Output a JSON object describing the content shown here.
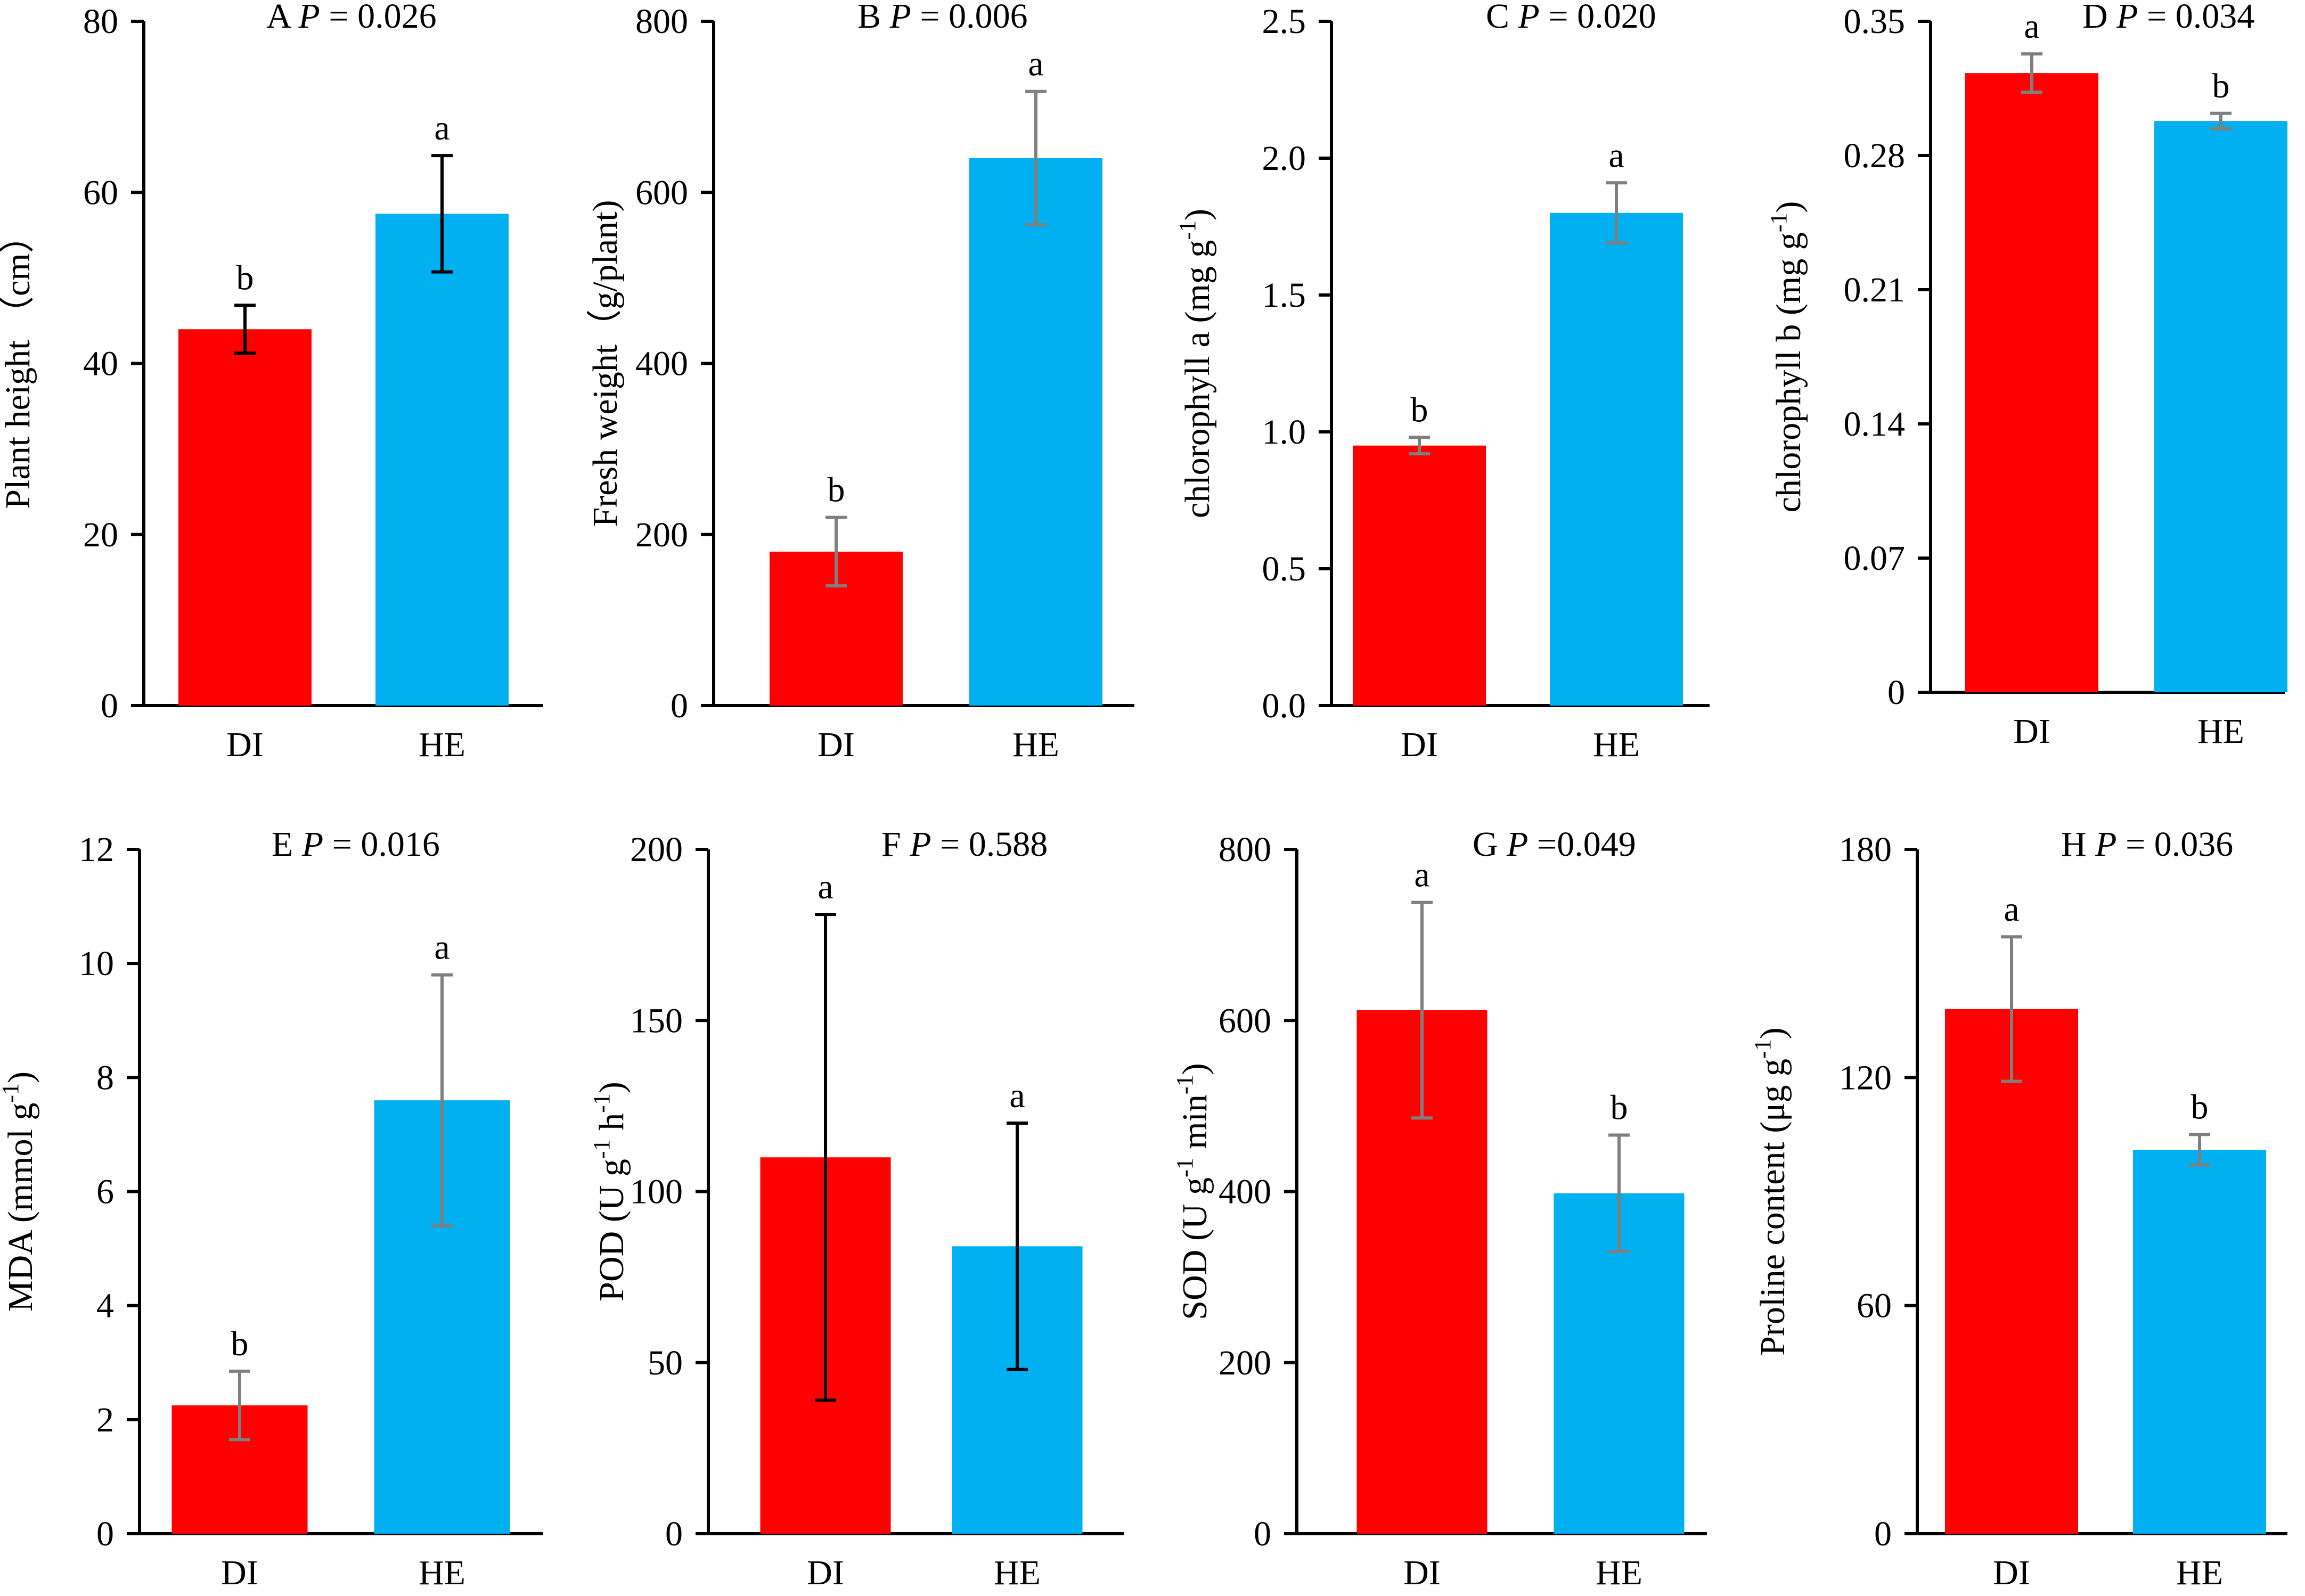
{
  "colors": {
    "DI": "#ff0000",
    "HE": "#00b0f0",
    "axis": "#000000",
    "error_dark": "#000000",
    "error_grey": "#7f7f7f"
  },
  "chart_data": [
    {
      "type": "bar",
      "panel": "A",
      "p_label": "P",
      "p_text": " = 0.026",
      "categories": [
        "DI",
        "HE"
      ],
      "values": [
        44.0,
        57.5
      ],
      "errors": [
        2.8,
        6.8
      ],
      "sig": [
        "b",
        "a"
      ],
      "ylabel": "Plant height （cm）",
      "ylim": [
        0,
        80
      ],
      "yticks": [
        "0",
        "20",
        "40",
        "60",
        "80"
      ],
      "error_color": "dark"
    },
    {
      "type": "bar",
      "panel": "B",
      "p_label": "P",
      "p_text": " = 0.006",
      "categories": [
        "DI",
        "HE"
      ],
      "values": [
        180,
        640
      ],
      "errors": [
        40,
        78
      ],
      "sig": [
        "b",
        "a"
      ],
      "ylabel": "Fresh weight（g/plant)",
      "ylim": [
        0,
        800
      ],
      "yticks": [
        "0",
        "200",
        "400",
        "600",
        "800"
      ],
      "error_color": "grey"
    },
    {
      "type": "bar",
      "panel": "C",
      "p_label": "P",
      "p_text": " = 0.020",
      "categories": [
        "DI",
        "HE"
      ],
      "values": [
        0.95,
        1.8
      ],
      "errors": [
        0.03,
        0.11
      ],
      "sig": [
        "b",
        "a"
      ],
      "ylabel": "chlorophyll a (mg g",
      "ylabel_sup": "-1",
      "ylabel_end": ")",
      "ylim": [
        0,
        2.5
      ],
      "yticks": [
        "0.0",
        "0.5",
        "1.0",
        "1.5",
        "2.0",
        "2.5"
      ],
      "error_color": "grey"
    },
    {
      "type": "bar",
      "panel": "D",
      "p_label": "P",
      "p_text": " = 0.034",
      "categories": [
        "DI",
        "HE"
      ],
      "values": [
        0.323,
        0.298
      ],
      "errors": [
        0.01,
        0.004
      ],
      "sig": [
        "a",
        "b"
      ],
      "ylabel": "chlorophyll b (mg g",
      "ylabel_sup": "-1",
      "ylabel_end": ")",
      "ylim": [
        0,
        0.35
      ],
      "yticks": [
        "0",
        "0.07",
        "0.14",
        "0.21",
        "0.28",
        "0.35"
      ],
      "error_color": "grey"
    },
    {
      "type": "bar",
      "panel": "E",
      "p_label": "P",
      "p_text": " =  0.016",
      "categories": [
        "DI",
        "HE"
      ],
      "values": [
        2.25,
        7.6
      ],
      "errors": [
        0.6,
        2.2
      ],
      "sig": [
        "b",
        "a"
      ],
      "ylabel": "MDA (mmol g",
      "ylabel_sup": "-1",
      "ylabel_end": ")",
      "ylim": [
        0,
        12
      ],
      "yticks": [
        "0",
        "2",
        "4",
        "6",
        "8",
        "10",
        "12"
      ],
      "error_color": "grey"
    },
    {
      "type": "bar",
      "panel": "F",
      "p_label": "P",
      "p_text": " = 0.588",
      "categories": [
        "DI",
        "HE"
      ],
      "values": [
        110,
        84
      ],
      "errors": [
        71,
        36
      ],
      "sig": [
        "a",
        "a"
      ],
      "ylabel": "POD (U  g",
      "ylabel_sup": "-1",
      "ylabel_mid": " h",
      "ylabel_sup2": "-1",
      "ylabel_end": ")",
      "ylim": [
        0,
        200
      ],
      "yticks": [
        "0",
        "50",
        "100",
        "150",
        "200"
      ],
      "error_color": "dark"
    },
    {
      "type": "bar",
      "panel": "G",
      "p_label": "P",
      "p_text": " =0.049",
      "categories": [
        "DI",
        "HE"
      ],
      "values": [
        612,
        398
      ],
      "errors": [
        126,
        68
      ],
      "sig": [
        "a",
        "b"
      ],
      "ylabel": "SOD (U g",
      "ylabel_sup": "-1",
      "ylabel_mid": " min",
      "ylabel_sup2": "-1",
      "ylabel_end": ")",
      "ylim": [
        0,
        800
      ],
      "yticks": [
        "0",
        "200",
        "400",
        "600",
        "800"
      ],
      "error_color": "grey"
    },
    {
      "type": "bar",
      "panel": "H",
      "p_label": "P",
      "p_text": " = 0.036",
      "categories": [
        "DI",
        "HE"
      ],
      "values": [
        138,
        101
      ],
      "errors": [
        19,
        4
      ],
      "sig": [
        "a",
        "b"
      ],
      "ylabel": "Proline content (μg g",
      "ylabel_sup": "-1",
      "ylabel_end": ")",
      "ylim": [
        0,
        180
      ],
      "yticks": [
        "0",
        "60",
        "120",
        "180"
      ],
      "error_color": "grey"
    }
  ]
}
